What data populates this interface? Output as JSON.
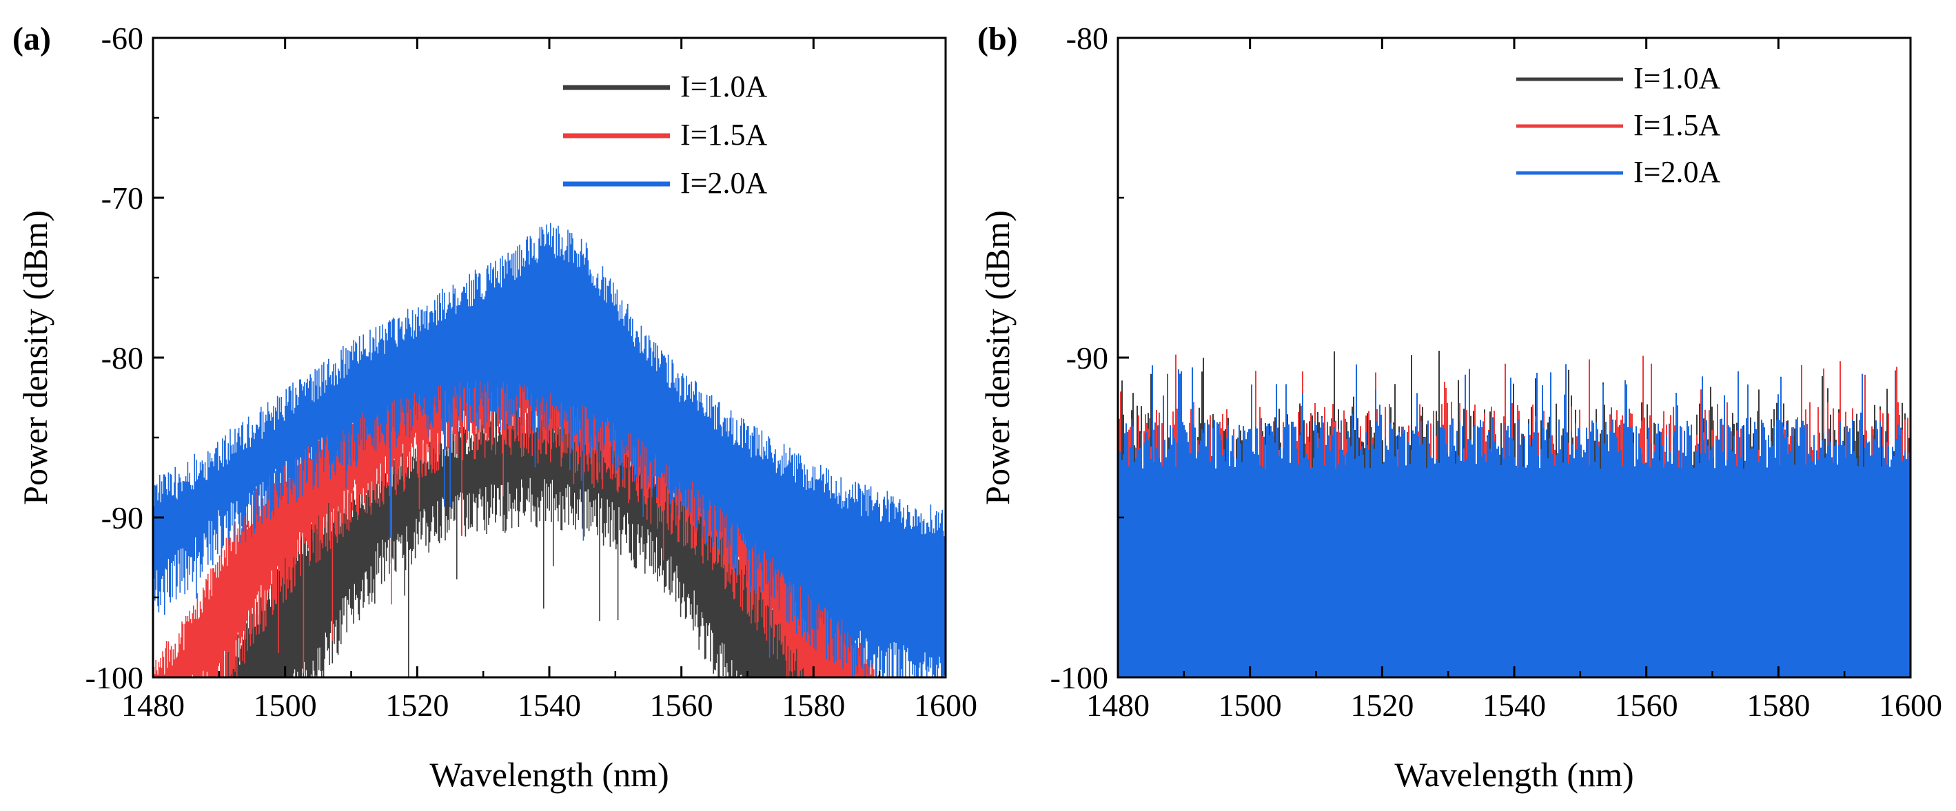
{
  "colors": {
    "s1": "#3d3d3d",
    "s2": "#ef3b3b",
    "s3": "#1c6ae0"
  },
  "chart_data": [
    {
      "panel_label": "(a)",
      "type": "line",
      "xlabel": "Wavelength (nm)",
      "ylabel": "Power density (dBm)",
      "xlim": [
        1480,
        1600
      ],
      "ylim": [
        -100,
        -60
      ],
      "xticks": [
        "1480",
        "1500",
        "1520",
        "1540",
        "1560",
        "1580",
        "1600"
      ],
      "yticks": [
        "-100",
        "-90",
        "-80",
        "-70",
        "-60"
      ],
      "legend": "top-right",
      "series": [
        {
          "name": "I=1.0A",
          "color": "#3d3d3d",
          "x": [
            1490,
            1495,
            1500,
            1505,
            1510,
            1515,
            1520,
            1525,
            1530,
            1535,
            1540,
            1545,
            1550,
            1555,
            1560,
            1565,
            1570,
            1575,
            1580
          ],
          "upper": [
            -100,
            -97,
            -93,
            -90.5,
            -89,
            -87.5,
            -86.5,
            -85.5,
            -84.5,
            -83.8,
            -83.7,
            -84.2,
            -85.2,
            -86.5,
            -88,
            -90,
            -92.5,
            -95.5,
            -100
          ],
          "lower": [
            -100,
            -100,
            -100,
            -98,
            -94,
            -91,
            -89.5,
            -88.5,
            -88,
            -87.5,
            -87.5,
            -88,
            -89,
            -90.5,
            -93,
            -97,
            -100,
            -100,
            -100
          ]
        },
        {
          "name": "I=1.5A",
          "color": "#ef3b3b",
          "x": [
            1480,
            1485,
            1490,
            1495,
            1500,
            1505,
            1510,
            1515,
            1520,
            1525,
            1530,
            1535,
            1540,
            1545,
            1550,
            1555,
            1560,
            1565,
            1570,
            1575,
            1580,
            1585,
            1590
          ],
          "upper": [
            -100,
            -97,
            -93,
            -89.5,
            -87,
            -85,
            -83.3,
            -81.8,
            -80.5,
            -79.6,
            -79.4,
            -79.8,
            -80.5,
            -81.4,
            -82.5,
            -83.7,
            -85,
            -86.5,
            -88,
            -90,
            -92.5,
            -96,
            -100
          ],
          "lower": [
            -100,
            -100,
            -99,
            -95,
            -92,
            -89.5,
            -87.5,
            -86,
            -84.5,
            -83.5,
            -83,
            -83,
            -83.5,
            -84.5,
            -85.5,
            -87,
            -88.5,
            -90.5,
            -93,
            -96.5,
            -100,
            -100,
            -100
          ]
        },
        {
          "name": "I=2.0A",
          "color": "#1c6ae0",
          "x": [
            1480,
            1485,
            1490,
            1495,
            1500,
            1505,
            1510,
            1515,
            1520,
            1525,
            1530,
            1535,
            1540,
            1545,
            1550,
            1555,
            1560,
            1565,
            1570,
            1575,
            1580,
            1585,
            1590,
            1595,
            1600
          ],
          "upper": [
            -88.5,
            -87.5,
            -86,
            -84.5,
            -83,
            -81.5,
            -80,
            -78.8,
            -77.6,
            -76.5,
            -75.3,
            -74,
            -72.5,
            -73.5,
            -76.5,
            -79.5,
            -81.8,
            -83.5,
            -85,
            -86.3,
            -87.5,
            -88.5,
            -89.3,
            -89.8,
            -90.3
          ],
          "lower": [
            -93.5,
            -91.5,
            -89.5,
            -88,
            -86.5,
            -85,
            -83.8,
            -82.8,
            -82,
            -81.5,
            -81.3,
            -81.5,
            -82,
            -82.8,
            -84,
            -85.5,
            -87,
            -89,
            -91,
            -93,
            -95,
            -96.5,
            -97.5,
            -98,
            -98.5
          ]
        }
      ]
    },
    {
      "panel_label": "(b)",
      "type": "line",
      "xlabel": "Wavelength (nm)",
      "ylabel": "Power density (dBm)",
      "xlim": [
        1480,
        1600
      ],
      "ylim": [
        -100,
        -80
      ],
      "xticks": [
        "1480",
        "1500",
        "1520",
        "1540",
        "1560",
        "1580",
        "1600"
      ],
      "yticks": [
        "-100",
        "-90",
        "-80"
      ],
      "legend": "top-right",
      "series": [
        {
          "name": "I=1.0A",
          "color": "#3d3d3d",
          "x": [
            1480,
            1600
          ],
          "upper": [
            -92.5,
            -92.5
          ],
          "lower": [
            -100,
            -100
          ]
        },
        {
          "name": "I=1.5A",
          "color": "#ef3b3b",
          "x": [
            1480,
            1600
          ],
          "upper": [
            -92.5,
            -92.5
          ],
          "lower": [
            -100,
            -100
          ]
        },
        {
          "name": "I=2.0A",
          "color": "#1c6ae0",
          "x": [
            1480,
            1600
          ],
          "upper": [
            -93.0,
            -93.0
          ],
          "lower": [
            -100,
            -100
          ]
        }
      ]
    }
  ]
}
